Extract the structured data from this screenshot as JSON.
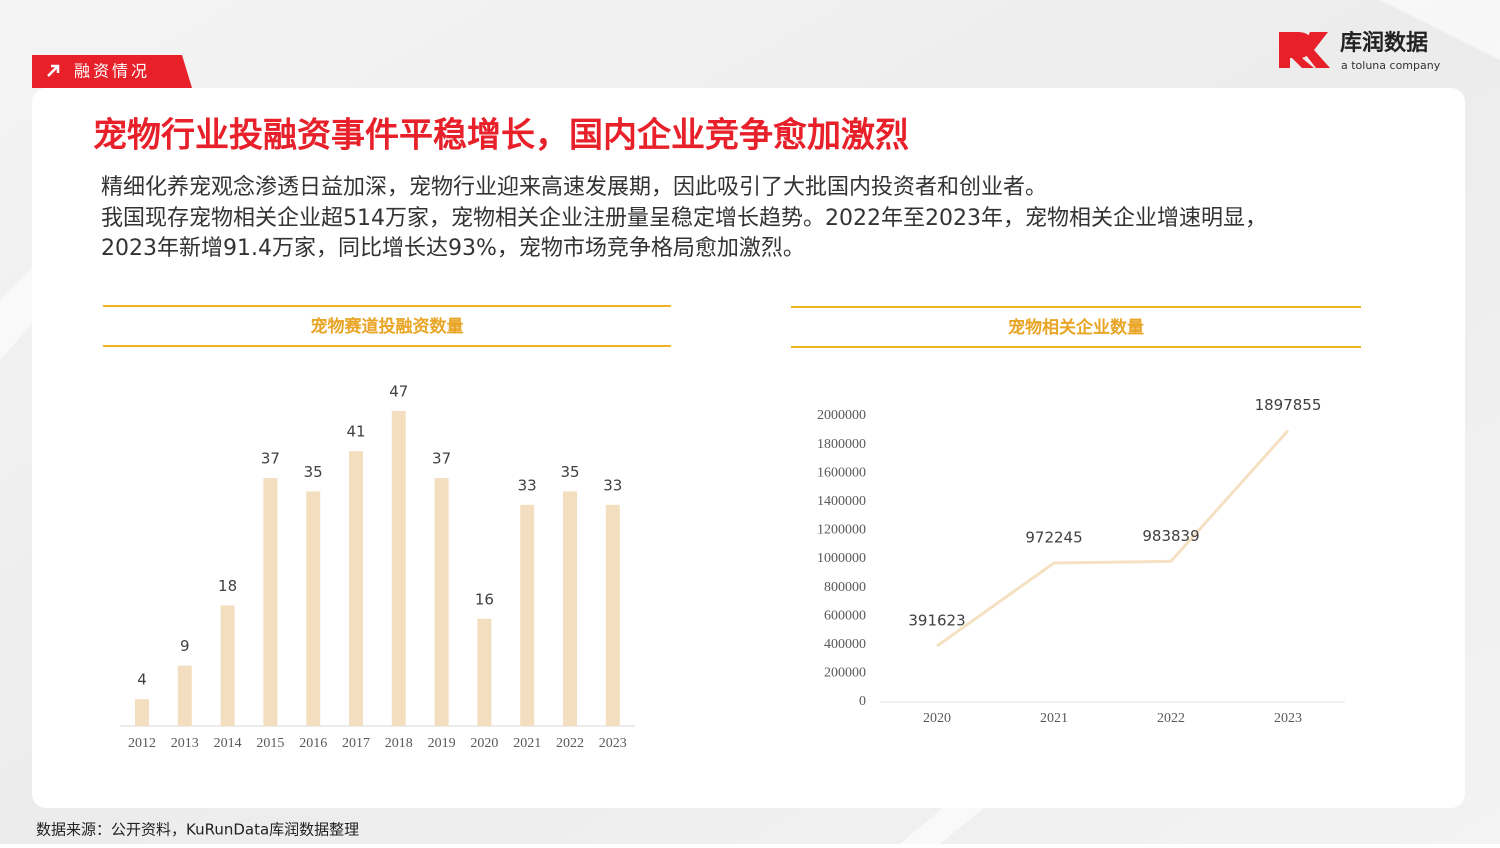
{
  "tag": "融资情况",
  "logo": {
    "name": "库润数据",
    "sub": "a toluna company"
  },
  "title": "宠物行业投融资事件平稳增长，国内企业竞争愈加激烈",
  "body": [
    "精细化养宠观念渗透日益加深，宠物行业迎来高速发展期，因此吸引了大批国内投资者和创业者。",
    "我国现存宠物相关企业超514万家，宠物相关企业注册量呈稳定增长趋势。2022年至2023年，宠物相关企业增速明显，",
    "2023年新增91.4万家，同比增长达93%，宠物市场竞争格局愈加激烈。"
  ],
  "source": "数据来源：公开资料，KuRunData库润数据整理",
  "chart_data": [
    {
      "type": "bar",
      "title": "宠物赛道投融资数量",
      "categories": [
        "2012",
        "2013",
        "2014",
        "2015",
        "2016",
        "2017",
        "2018",
        "2019",
        "2020",
        "2021",
        "2022",
        "2023"
      ],
      "values": [
        4,
        9,
        18,
        37,
        35,
        41,
        47,
        37,
        16,
        33,
        35,
        33
      ],
      "color": "#f3dfbf"
    },
    {
      "type": "line",
      "title": "宠物相关企业数量",
      "categories": [
        "2020",
        "2021",
        "2022",
        "2023"
      ],
      "values": [
        391623,
        972245,
        983839,
        1897855
      ],
      "color": "#f5e1c2",
      "ylim": [
        0,
        2000000
      ],
      "yticks": [
        0,
        200000,
        400000,
        600000,
        800000,
        1000000,
        1200000,
        1400000,
        1600000,
        1800000,
        2000000
      ]
    }
  ]
}
